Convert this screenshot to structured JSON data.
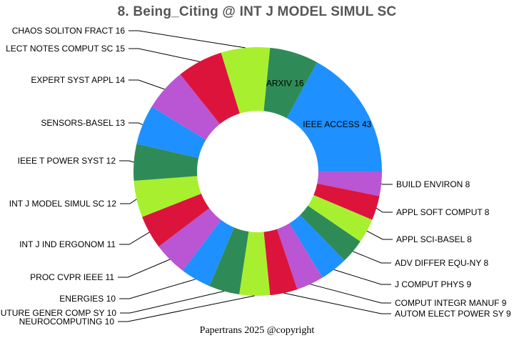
{
  "title": "8. Being_Citing @ INT J MODEL SIMUL SC",
  "caption": "Papertrans 2025 @copyright",
  "palette": {
    "blue": "#1E90FF",
    "orchid": "#BA55D3",
    "crimson": "#DC143C",
    "green_yellow": "#A8F02F",
    "sea_green": "#2E8B57",
    "title_gray": "#565658",
    "label_black": "#000000",
    "background": "#FFFFFF"
  },
  "chart_data": {
    "type": "pie",
    "subtype": "donut",
    "title": "8. Being_Citing @ INT J MODEL SIMUL SC",
    "total": 252,
    "start_angle_deg_ccw_from_east": 61.43,
    "direction": "clockwise",
    "legend": "none",
    "grid": false,
    "slices": [
      {
        "name": "IEEE ACCESS",
        "value": 43,
        "color": "#1E90FF",
        "label_placement": "inner"
      },
      {
        "name": "BUILD ENVIRON",
        "value": 8,
        "color": "#BA55D3",
        "label_placement": "right"
      },
      {
        "name": "APPL SOFT COMPUT",
        "value": 8,
        "color": "#DC143C",
        "label_placement": "right"
      },
      {
        "name": "APPL SCI-BASEL",
        "value": 8,
        "color": "#A8F02F",
        "label_placement": "right"
      },
      {
        "name": "ADV DIFFER EQU-NY",
        "value": 8,
        "color": "#2E8B57",
        "label_placement": "right"
      },
      {
        "name": "J COMPUT PHYS",
        "value": 9,
        "color": "#1E90FF",
        "label_placement": "right"
      },
      {
        "name": "COMPUT INTEGR MANUF",
        "value": 9,
        "color": "#BA55D3",
        "label_placement": "right"
      },
      {
        "name": "AUTOM ELECT POWER SY",
        "value": 9,
        "color": "#DC143C",
        "label_placement": "right"
      },
      {
        "name": "NEUROCOMPUTING",
        "value": 10,
        "color": "#A8F02F",
        "label_placement": "left"
      },
      {
        "name": "UTURE GENER COMP SY",
        "value": 10,
        "color": "#2E8B57",
        "label_placement": "left"
      },
      {
        "name": "ENERGIES",
        "value": 10,
        "color": "#1E90FF",
        "label_placement": "left"
      },
      {
        "name": "PROC CVPR IEEE",
        "value": 11,
        "color": "#BA55D3",
        "label_placement": "left"
      },
      {
        "name": "INT J IND ERGONOM",
        "value": 11,
        "color": "#DC143C",
        "label_placement": "left"
      },
      {
        "name": "INT J MODEL SIMUL SC",
        "value": 12,
        "color": "#A8F02F",
        "label_placement": "left"
      },
      {
        "name": "IEEE T POWER SYST",
        "value": 12,
        "color": "#2E8B57",
        "label_placement": "left"
      },
      {
        "name": "SENSORS-BASEL",
        "value": 13,
        "color": "#1E90FF",
        "label_placement": "left"
      },
      {
        "name": "EXPERT SYST APPL",
        "value": 14,
        "color": "#BA55D3",
        "label_placement": "left"
      },
      {
        "name": "LECT NOTES COMPUT SC",
        "value": 15,
        "color": "#DC143C",
        "label_placement": "left"
      },
      {
        "name": "CHAOS SOLITON FRACT",
        "value": 16,
        "color": "#A8F02F",
        "label_placement": "left"
      },
      {
        "name": "ARXIV",
        "value": 16,
        "color": "#2E8B57",
        "label_placement": "inner"
      }
    ]
  }
}
